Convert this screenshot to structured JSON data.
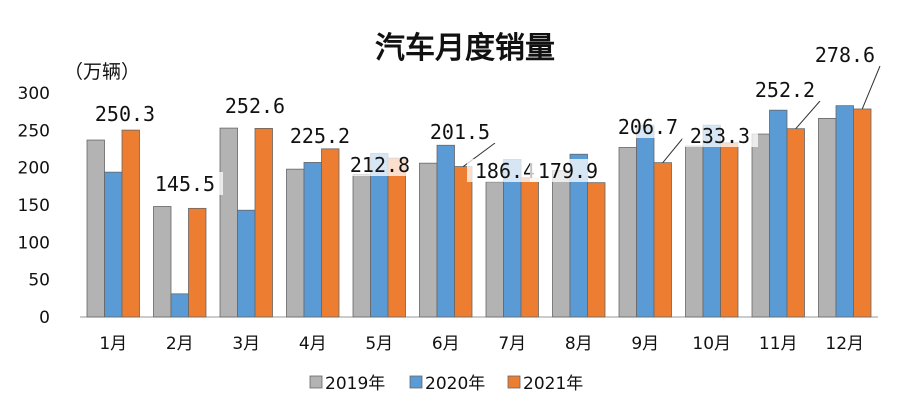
{
  "chart_data": {
    "type": "bar",
    "title": "汽车月度销量",
    "unit_label": "（万辆）",
    "categories": [
      "1月",
      "2月",
      "3月",
      "4月",
      "5月",
      "6月",
      "7月",
      "8月",
      "9月",
      "10月",
      "11月",
      "12月"
    ],
    "series": [
      {
        "name": "2019年",
        "color": "#b3b3b3",
        "values": [
          237,
          148,
          253,
          198,
          191,
          206,
          181,
          196,
          227,
          229,
          245,
          266
        ]
      },
      {
        "name": "2020年",
        "color": "#5b9bd5",
        "values": [
          194,
          31,
          143,
          207,
          219,
          230,
          211,
          218,
          257,
          257,
          277,
          283
        ]
      },
      {
        "name": "2021年",
        "color": "#ed7d31",
        "values": [
          250.3,
          145.5,
          252.6,
          225.2,
          212.8,
          201.5,
          186.4,
          179.9,
          206.7,
          233.3,
          252.2,
          278.6
        ]
      }
    ],
    "data_labels": [
      "250.3",
      "145.5",
      "252.6",
      "225.2",
      "212.8",
      "201.5",
      "186.4",
      "179.9",
      "206.7",
      "233.3",
      "252.2",
      "278.6"
    ],
    "yticks": [
      "0",
      "50",
      "100",
      "150",
      "200",
      "250",
      "300"
    ],
    "ylim": [
      0,
      300
    ],
    "legend_position": "bottom",
    "grid": false
  }
}
